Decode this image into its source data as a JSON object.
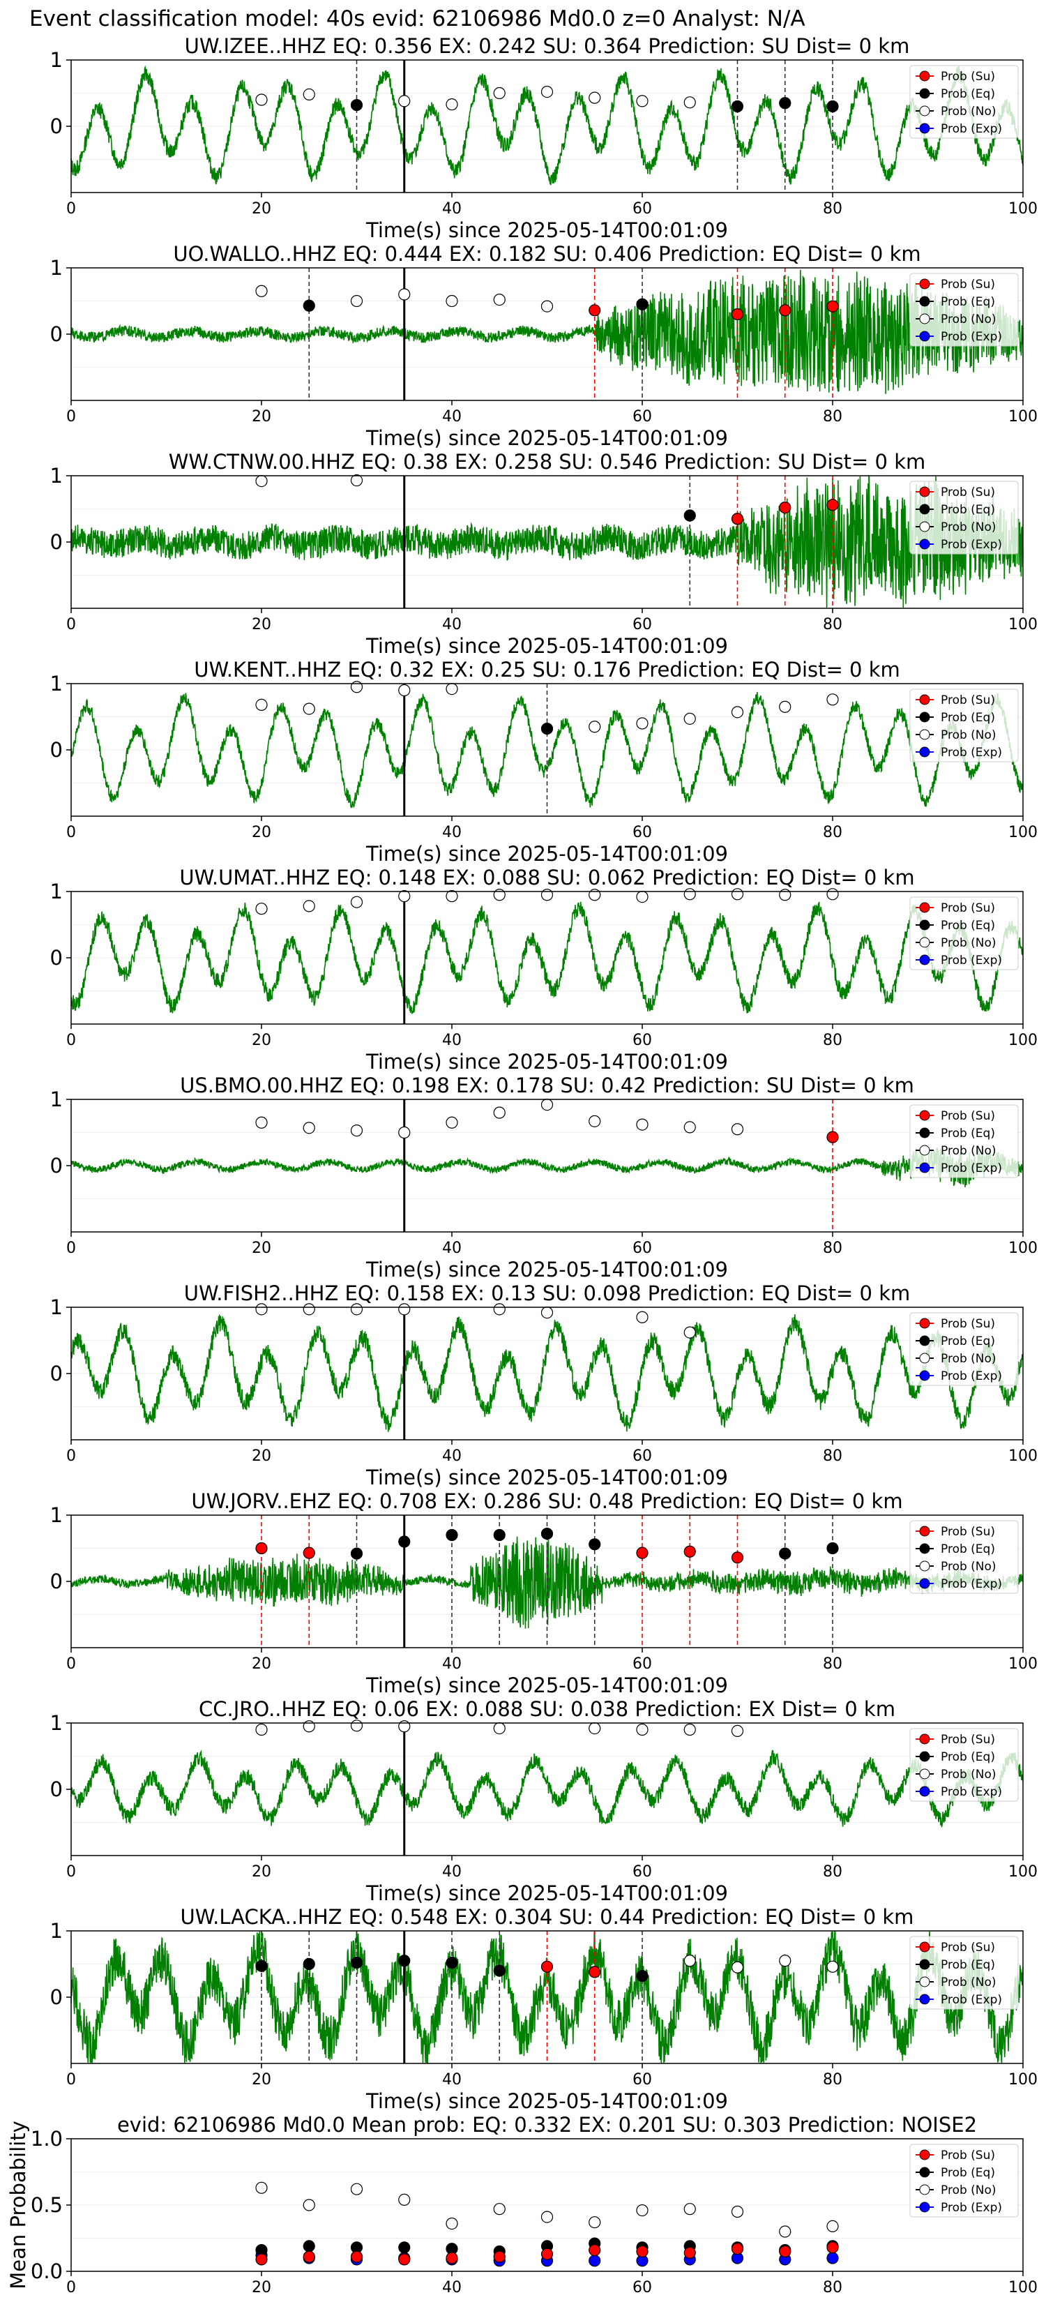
{
  "figure_title": "Event classification model: 40s evid: 62106986 Md0.0 z=0 Analyst: N/A",
  "time_axis": {
    "xlabel": "Time(s) since 2025-05-14T00:01:09",
    "xlim": [
      0,
      100
    ],
    "ticks": [
      "0",
      "20",
      "40",
      "60",
      "80",
      "100"
    ],
    "ylim": [
      -1,
      1
    ],
    "yticks": [
      "0",
      "1"
    ]
  },
  "legend": [
    "Prob (Su)",
    "Prob (Eq)",
    "Prob (No)",
    "Prob (Exp)"
  ],
  "colors": {
    "waveform": "#008000",
    "su": "#ff0000",
    "eq": "#000000",
    "no": "#ffffff",
    "exp": "#0000ff",
    "su_line": "#ff0000",
    "eq_line": "#333333",
    "event_line": "#000000"
  },
  "event_time": 35,
  "chart_data": [
    {
      "type": "line",
      "title": "UW.IZEE..HHZ   EQ: 0.356  EX: 0.242  SU: 0.364   Prediction: SU    Dist= 0 km",
      "style": "lowfreq",
      "noise_amp": 0.12,
      "wave_amp": 0.75,
      "no": [
        [
          20,
          0.4
        ],
        [
          25,
          0.48
        ],
        [
          35,
          0.38
        ],
        [
          40,
          0.33
        ],
        [
          45,
          0.5
        ],
        [
          50,
          0.52
        ],
        [
          55,
          0.43
        ],
        [
          60,
          0.38
        ],
        [
          65,
          0.36
        ]
      ],
      "eq": [
        [
          30,
          0.32
        ],
        [
          70,
          0.3
        ],
        [
          75,
          0.35
        ],
        [
          80,
          0.3
        ]
      ],
      "su": [],
      "exp": []
    },
    {
      "type": "line",
      "title": "UO.WALLO..HHZ   EQ: 0.444  EX: 0.182  SU: 0.406   Prediction: EQ    Dist= 0 km",
      "style": "noise",
      "noise_amp": 0.08,
      "wave_amp": 0.05,
      "bursts": [
        {
          "start": 55,
          "end": 100,
          "amp": 0.9
        }
      ],
      "no": [
        [
          20,
          0.65
        ],
        [
          30,
          0.5
        ],
        [
          35,
          0.6
        ],
        [
          40,
          0.5
        ],
        [
          45,
          0.52
        ],
        [
          50,
          0.42
        ]
      ],
      "eq": [
        [
          25,
          0.43
        ],
        [
          60,
          0.45
        ]
      ],
      "su": [
        [
          55,
          0.36
        ],
        [
          70,
          0.3
        ],
        [
          75,
          0.36
        ],
        [
          80,
          0.42
        ]
      ],
      "exp": []
    },
    {
      "type": "line",
      "title": "WW.CTNW.00.HHZ   EQ: 0.38  EX: 0.258  SU: 0.546   Prediction: SU    Dist= 0 km",
      "style": "noise",
      "noise_amp": 0.22,
      "wave_amp": 0.06,
      "bursts": [
        {
          "start": 70,
          "end": 100,
          "amp": 0.95
        }
      ],
      "no": [
        [
          20,
          0.92
        ],
        [
          30,
          0.93
        ]
      ],
      "eq": [
        [
          65,
          0.4
        ]
      ],
      "su": [
        [
          70,
          0.35
        ],
        [
          75,
          0.52
        ],
        [
          80,
          0.56
        ]
      ],
      "exp": []
    },
    {
      "type": "line",
      "title": "UW.KENT..HHZ   EQ: 0.32  EX: 0.25  SU: 0.176   Prediction: EQ    Dist= 0 km",
      "style": "lowfreq",
      "noise_amp": 0.1,
      "wave_amp": 0.75,
      "no": [
        [
          20,
          0.68
        ],
        [
          25,
          0.62
        ],
        [
          30,
          0.95
        ],
        [
          35,
          0.9
        ],
        [
          40,
          0.92
        ],
        [
          55,
          0.35
        ],
        [
          60,
          0.4
        ],
        [
          65,
          0.47
        ],
        [
          70,
          0.57
        ],
        [
          75,
          0.65
        ],
        [
          80,
          0.76
        ]
      ],
      "eq": [
        [
          50,
          0.32
        ]
      ],
      "su": [],
      "exp": []
    },
    {
      "type": "line",
      "title": "UW.UMAT..HHZ   EQ: 0.148  EX: 0.088  SU: 0.062   Prediction: EQ    Dist= 0 km",
      "style": "lowfreq",
      "noise_amp": 0.12,
      "wave_amp": 0.72,
      "no": [
        [
          20,
          0.74
        ],
        [
          25,
          0.78
        ],
        [
          30,
          0.84
        ],
        [
          35,
          0.93
        ],
        [
          40,
          0.93
        ],
        [
          45,
          0.95
        ],
        [
          50,
          0.95
        ],
        [
          55,
          0.95
        ],
        [
          60,
          0.92
        ],
        [
          65,
          0.96
        ],
        [
          70,
          0.96
        ],
        [
          75,
          0.95
        ],
        [
          80,
          0.96
        ]
      ],
      "eq": [],
      "su": [],
      "exp": []
    },
    {
      "type": "line",
      "title": "US.BMO.00.HHZ   EQ: 0.198  EX: 0.178  SU: 0.42   Prediction: SU    Dist= 0 km",
      "style": "noise",
      "noise_amp": 0.05,
      "wave_amp": 0.06,
      "bursts": [
        {
          "start": 85,
          "end": 100,
          "amp": 0.25
        }
      ],
      "no": [
        [
          20,
          0.65
        ],
        [
          25,
          0.57
        ],
        [
          30,
          0.53
        ],
        [
          35,
          0.5
        ],
        [
          40,
          0.65
        ],
        [
          45,
          0.8
        ],
        [
          50,
          0.92
        ],
        [
          55,
          0.67
        ],
        [
          60,
          0.62
        ],
        [
          65,
          0.58
        ],
        [
          70,
          0.55
        ]
      ],
      "eq": [],
      "su": [
        [
          80,
          0.43
        ]
      ],
      "exp": []
    },
    {
      "type": "line",
      "title": "UW.FISH2..HHZ   EQ: 0.158  EX: 0.13  SU: 0.098   Prediction: EQ    Dist= 0 km",
      "style": "lowfreq",
      "noise_amp": 0.14,
      "wave_amp": 0.72,
      "no": [
        [
          20,
          0.97
        ],
        [
          25,
          0.97
        ],
        [
          30,
          0.97
        ],
        [
          35,
          0.97
        ],
        [
          45,
          0.97
        ],
        [
          50,
          0.92
        ],
        [
          60,
          0.85
        ],
        [
          65,
          0.62
        ]
      ],
      "eq": [],
      "su": [],
      "exp": []
    },
    {
      "type": "line",
      "title": "UW.JORV..EHZ   EQ: 0.708  EX: 0.286  SU: 0.48   Prediction: EQ    Dist= 0 km",
      "style": "noise",
      "noise_amp": 0.06,
      "wave_amp": 0.04,
      "bursts": [
        {
          "start": 10,
          "end": 35,
          "amp": 0.35
        },
        {
          "start": 42,
          "end": 56,
          "amp": 0.7
        },
        {
          "start": 56,
          "end": 100,
          "amp": 0.15
        }
      ],
      "no": [],
      "eq": [
        [
          30,
          0.42
        ],
        [
          35,
          0.6
        ],
        [
          40,
          0.7
        ],
        [
          45,
          0.7
        ],
        [
          50,
          0.72
        ],
        [
          55,
          0.56
        ],
        [
          75,
          0.42
        ],
        [
          80,
          0.5
        ]
      ],
      "su": [
        [
          20,
          0.5
        ],
        [
          25,
          0.43
        ],
        [
          60,
          0.43
        ],
        [
          65,
          0.45
        ],
        [
          70,
          0.36
        ]
      ],
      "exp": []
    },
    {
      "type": "line",
      "title": "CC.JRO..HHZ   EQ: 0.06  EX: 0.088  SU: 0.038   Prediction: EX    Dist= 0 km",
      "style": "lowfreq",
      "noise_amp": 0.12,
      "wave_amp": 0.45,
      "no": [
        [
          20,
          0.9
        ],
        [
          25,
          0.95
        ],
        [
          30,
          0.96
        ],
        [
          35,
          0.95
        ],
        [
          45,
          0.92
        ],
        [
          55,
          0.92
        ],
        [
          60,
          0.9
        ],
        [
          65,
          0.9
        ],
        [
          70,
          0.88
        ]
      ],
      "eq": [],
      "su": [],
      "exp": []
    },
    {
      "type": "line",
      "title": "UW.LACKA..HHZ   EQ: 0.548  EX: 0.304  SU: 0.44   Prediction: EQ    Dist= 0 km",
      "style": "lowfreq",
      "noise_amp": 0.35,
      "wave_amp": 0.7,
      "no": [
        [
          65,
          0.55
        ],
        [
          70,
          0.45
        ],
        [
          75,
          0.55
        ],
        [
          80,
          0.46
        ]
      ],
      "eq": [
        [
          20,
          0.47
        ],
        [
          25,
          0.5
        ],
        [
          30,
          0.52
        ],
        [
          35,
          0.55
        ],
        [
          40,
          0.52
        ],
        [
          45,
          0.4
        ],
        [
          60,
          0.32
        ]
      ],
      "su": [
        [
          50,
          0.46
        ],
        [
          55,
          0.38
        ]
      ],
      "exp": []
    },
    {
      "type": "scatter",
      "title": "evid: 62106986  Md0.0   Mean prob:   EQ: 0.332  EX: 0.201  SU: 0.303   Prediction: NOISE2",
      "ylabel": "Mean Probability",
      "xlim": [
        0,
        100
      ],
      "ylim": [
        0,
        1
      ],
      "yticks": [
        "0.0",
        "0.5",
        "1.0"
      ],
      "no": [
        [
          20,
          0.63
        ],
        [
          25,
          0.5
        ],
        [
          30,
          0.62
        ],
        [
          35,
          0.54
        ],
        [
          40,
          0.36
        ],
        [
          45,
          0.47
        ],
        [
          50,
          0.41
        ],
        [
          55,
          0.37
        ],
        [
          60,
          0.46
        ],
        [
          65,
          0.47
        ],
        [
          70,
          0.45
        ],
        [
          75,
          0.3
        ],
        [
          80,
          0.34
        ]
      ],
      "eq": [
        [
          20,
          0.16
        ],
        [
          25,
          0.19
        ],
        [
          30,
          0.18
        ],
        [
          35,
          0.18
        ],
        [
          40,
          0.17
        ],
        [
          45,
          0.15
        ],
        [
          50,
          0.19
        ],
        [
          55,
          0.21
        ],
        [
          60,
          0.18
        ],
        [
          65,
          0.19
        ],
        [
          70,
          0.18
        ],
        [
          75,
          0.16
        ],
        [
          80,
          0.19
        ]
      ],
      "su": [
        [
          20,
          0.09
        ],
        [
          25,
          0.11
        ],
        [
          30,
          0.11
        ],
        [
          35,
          0.09
        ],
        [
          40,
          0.1
        ],
        [
          45,
          0.11
        ],
        [
          50,
          0.13
        ],
        [
          55,
          0.16
        ],
        [
          60,
          0.15
        ],
        [
          65,
          0.14
        ],
        [
          70,
          0.17
        ],
        [
          75,
          0.15
        ],
        [
          80,
          0.18
        ]
      ],
      "exp": [
        [
          20,
          0.12
        ],
        [
          25,
          0.1
        ],
        [
          30,
          0.09
        ],
        [
          35,
          0.1
        ],
        [
          40,
          0.09
        ],
        [
          45,
          0.08
        ],
        [
          50,
          0.08
        ],
        [
          55,
          0.08
        ],
        [
          60,
          0.08
        ],
        [
          65,
          0.09
        ],
        [
          70,
          0.1
        ],
        [
          75,
          0.09
        ],
        [
          80,
          0.1
        ]
      ]
    }
  ]
}
